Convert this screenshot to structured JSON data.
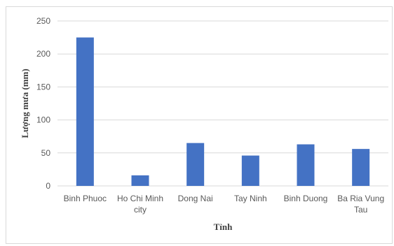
{
  "chart_data": {
    "type": "bar",
    "title": "",
    "xlabel": "Tỉnh",
    "ylabel": "Lượng mưa (mm)",
    "categories": [
      "Binh Phuoc",
      "Ho Chi Minh city",
      "Dong Nai",
      "Tay Ninh",
      "Binh Duong",
      "Ba Ria Vung Tau"
    ],
    "category_lines": [
      [
        "Binh Phuoc"
      ],
      [
        "Ho Chi Minh",
        "city"
      ],
      [
        "Dong Nai"
      ],
      [
        "Tay Ninh"
      ],
      [
        "Binh Duong"
      ],
      [
        "Ba Ria Vung",
        "Tau"
      ]
    ],
    "values": [
      225,
      16,
      65,
      46,
      63,
      56
    ],
    "ylim": [
      0,
      250
    ],
    "yticks": [
      0,
      50,
      100,
      150,
      200,
      250
    ],
    "grid": true,
    "bar_color": "#4472c4",
    "grid_color": "#d9d9d9"
  }
}
